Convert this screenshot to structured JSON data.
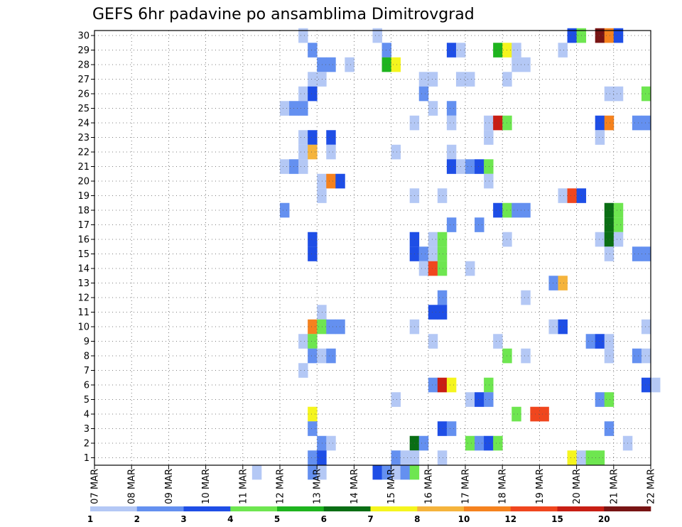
{
  "chart_data": {
    "type": "heatmap",
    "title": "GEFS 6hr padavine po ansamblima Dimitrovgrad",
    "xlabel": "",
    "ylabel": "",
    "grid": true,
    "legend_position": "bottom",
    "x_ticks": [
      "07 MAR",
      "08 MAR",
      "09 MAR",
      "10 MAR",
      "11 MAR",
      "12 MAR",
      "13 MAR",
      "14 MAR",
      "15 MAR",
      "16 MAR",
      "17 MAR",
      "18 MAR",
      "19 MAR",
      "20 MAR",
      "21 MAR",
      "22 MAR"
    ],
    "y_ticks": [
      1,
      2,
      3,
      4,
      5,
      6,
      7,
      8,
      9,
      10,
      11,
      12,
      13,
      14,
      15,
      16,
      17,
      18,
      19,
      20,
      21,
      22,
      23,
      24,
      25,
      26,
      27,
      28,
      29,
      30
    ],
    "time_step_hours": 6,
    "time_start": "07 MAR",
    "legend": {
      "thresholds": [
        1,
        2,
        3,
        4,
        5,
        6,
        7,
        8,
        10,
        12,
        15,
        20
      ],
      "colors": [
        "#b4c8f5",
        "#6490f0",
        "#1e4ee6",
        "#6ee650",
        "#1eb41e",
        "#0a6e14",
        "#f5f51e",
        "#f5b43c",
        "#f5821e",
        "#f0461e",
        "#c81e14",
        "#781414"
      ]
    },
    "cells": [
      {
        "x": "12 MAR 12Z",
        "member": 30,
        "value": 1
      },
      {
        "x": "14 MAR 12Z",
        "member": 30,
        "value": 1
      },
      {
        "x": "19 MAR 18Z",
        "member": 30,
        "value": 3
      },
      {
        "x": "20 MAR 00Z",
        "member": 30,
        "value": 4
      },
      {
        "x": "20 MAR 12Z",
        "member": 30,
        "value": 20
      },
      {
        "x": "20 MAR 18Z",
        "member": 30,
        "value": 10
      },
      {
        "x": "21 MAR 00Z",
        "member": 30,
        "value": 3
      },
      {
        "x": "12 MAR 18Z",
        "member": 29,
        "value": 2
      },
      {
        "x": "14 MAR 18Z",
        "member": 29,
        "value": 2
      },
      {
        "x": "16 MAR 12Z",
        "member": 29,
        "value": 3
      },
      {
        "x": "16 MAR 18Z",
        "member": 29,
        "value": 1
      },
      {
        "x": "17 MAR 18Z",
        "member": 29,
        "value": 5
      },
      {
        "x": "18 MAR 00Z",
        "member": 29,
        "value": 7
      },
      {
        "x": "18 MAR 06Z",
        "member": 29,
        "value": 1
      },
      {
        "x": "19 MAR 12Z",
        "member": 29,
        "value": 1
      },
      {
        "x": "13 MAR 00Z",
        "member": 28,
        "value": 2
      },
      {
        "x": "13 MAR 06Z",
        "member": 28,
        "value": 2
      },
      {
        "x": "13 MAR 18Z",
        "member": 28,
        "value": 1
      },
      {
        "x": "14 MAR 18Z",
        "member": 28,
        "value": 5
      },
      {
        "x": "15 MAR 00Z",
        "member": 28,
        "value": 7
      },
      {
        "x": "18 MAR 06Z",
        "member": 28,
        "value": 1
      },
      {
        "x": "18 MAR 12Z",
        "member": 28,
        "value": 1
      },
      {
        "x": "12 MAR 18Z",
        "member": 27,
        "value": 1
      },
      {
        "x": "13 MAR 00Z",
        "member": 27,
        "value": 1
      },
      {
        "x": "15 MAR 18Z",
        "member": 27,
        "value": 1
      },
      {
        "x": "16 MAR 00Z",
        "member": 27,
        "value": 1
      },
      {
        "x": "16 MAR 18Z",
        "member": 27,
        "value": 1
      },
      {
        "x": "17 MAR 00Z",
        "member": 27,
        "value": 1
      },
      {
        "x": "18 MAR 00Z",
        "member": 27,
        "value": 1
      },
      {
        "x": "12 MAR 12Z",
        "member": 26,
        "value": 1
      },
      {
        "x": "12 MAR 18Z",
        "member": 26,
        "value": 3
      },
      {
        "x": "15 MAR 18Z",
        "member": 26,
        "value": 2
      },
      {
        "x": "20 MAR 18Z",
        "member": 26,
        "value": 1
      },
      {
        "x": "21 MAR 00Z",
        "member": 26,
        "value": 1
      },
      {
        "x": "21 MAR 18Z",
        "member": 26,
        "value": 4
      },
      {
        "x": "12 MAR 00Z",
        "member": 25,
        "value": 1
      },
      {
        "x": "12 MAR 06Z",
        "member": 25,
        "value": 2
      },
      {
        "x": "12 MAR 12Z",
        "member": 25,
        "value": 2
      },
      {
        "x": "16 MAR 00Z",
        "member": 25,
        "value": 1
      },
      {
        "x": "16 MAR 12Z",
        "member": 25,
        "value": 2
      },
      {
        "x": "15 MAR 12Z",
        "member": 24,
        "value": 1
      },
      {
        "x": "16 MAR 12Z",
        "member": 24,
        "value": 1
      },
      {
        "x": "17 MAR 12Z",
        "member": 24,
        "value": 1
      },
      {
        "x": "17 MAR 18Z",
        "member": 24,
        "value": 15
      },
      {
        "x": "18 MAR 00Z",
        "member": 24,
        "value": 4
      },
      {
        "x": "20 MAR 12Z",
        "member": 24,
        "value": 3
      },
      {
        "x": "20 MAR 18Z",
        "member": 24,
        "value": 10
      },
      {
        "x": "21 MAR 12Z",
        "member": 24,
        "value": 2
      },
      {
        "x": "21 MAR 18Z",
        "member": 24,
        "value": 2
      },
      {
        "x": "12 MAR 12Z",
        "member": 23,
        "value": 1
      },
      {
        "x": "12 MAR 18Z",
        "member": 23,
        "value": 3
      },
      {
        "x": "13 MAR 06Z",
        "member": 23,
        "value": 3
      },
      {
        "x": "17 MAR 12Z",
        "member": 23,
        "value": 1
      },
      {
        "x": "20 MAR 12Z",
        "member": 23,
        "value": 1
      },
      {
        "x": "12 MAR 12Z",
        "member": 22,
        "value": 1
      },
      {
        "x": "12 MAR 18Z",
        "member": 22,
        "value": 8
      },
      {
        "x": "13 MAR 06Z",
        "member": 22,
        "value": 1
      },
      {
        "x": "15 MAR 00Z",
        "member": 22,
        "value": 1
      },
      {
        "x": "16 MAR 12Z",
        "member": 22,
        "value": 1
      },
      {
        "x": "12 MAR 00Z",
        "member": 21,
        "value": 1
      },
      {
        "x": "12 MAR 06Z",
        "member": 21,
        "value": 2
      },
      {
        "x": "12 MAR 12Z",
        "member": 21,
        "value": 1
      },
      {
        "x": "16 MAR 12Z",
        "member": 21,
        "value": 3
      },
      {
        "x": "16 MAR 18Z",
        "member": 21,
        "value": 1
      },
      {
        "x": "17 MAR 00Z",
        "member": 21,
        "value": 2
      },
      {
        "x": "17 MAR 06Z",
        "member": 21,
        "value": 3
      },
      {
        "x": "17 MAR 12Z",
        "member": 21,
        "value": 4
      },
      {
        "x": "13 MAR 00Z",
        "member": 20,
        "value": 1
      },
      {
        "x": "13 MAR 06Z",
        "member": 20,
        "value": 10
      },
      {
        "x": "13 MAR 12Z",
        "member": 20,
        "value": 3
      },
      {
        "x": "17 MAR 12Z",
        "member": 20,
        "value": 1
      },
      {
        "x": "13 MAR 00Z",
        "member": 19,
        "value": 1
      },
      {
        "x": "15 MAR 12Z",
        "member": 19,
        "value": 1
      },
      {
        "x": "16 MAR 06Z",
        "member": 19,
        "value": 1
      },
      {
        "x": "19 MAR 12Z",
        "member": 19,
        "value": 1
      },
      {
        "x": "19 MAR 18Z",
        "member": 19,
        "value": 12
      },
      {
        "x": "20 MAR 00Z",
        "member": 19,
        "value": 3
      },
      {
        "x": "12 MAR 00Z",
        "member": 18,
        "value": 2
      },
      {
        "x": "17 MAR 18Z",
        "member": 18,
        "value": 3
      },
      {
        "x": "18 MAR 00Z",
        "member": 18,
        "value": 4
      },
      {
        "x": "18 MAR 06Z",
        "member": 18,
        "value": 2
      },
      {
        "x": "18 MAR 12Z",
        "member": 18,
        "value": 2
      },
      {
        "x": "20 MAR 18Z",
        "member": 18,
        "value": 6
      },
      {
        "x": "21 MAR 00Z",
        "member": 18,
        "value": 4
      },
      {
        "x": "16 MAR 12Z",
        "member": 17,
        "value": 2
      },
      {
        "x": "17 MAR 06Z",
        "member": 17,
        "value": 2
      },
      {
        "x": "20 MAR 18Z",
        "member": 17,
        "value": 6
      },
      {
        "x": "21 MAR 00Z",
        "member": 17,
        "value": 4
      },
      {
        "x": "12 MAR 18Z",
        "member": 16,
        "value": 3
      },
      {
        "x": "15 MAR 12Z",
        "member": 16,
        "value": 3
      },
      {
        "x": "16 MAR 00Z",
        "member": 16,
        "value": 1
      },
      {
        "x": "16 MAR 06Z",
        "member": 16,
        "value": 4
      },
      {
        "x": "18 MAR 00Z",
        "member": 16,
        "value": 1
      },
      {
        "x": "20 MAR 12Z",
        "member": 16,
        "value": 1
      },
      {
        "x": "20 MAR 18Z",
        "member": 16,
        "value": 6
      },
      {
        "x": "21 MAR 00Z",
        "member": 16,
        "value": 1
      },
      {
        "x": "12 MAR 18Z",
        "member": 15,
        "value": 3
      },
      {
        "x": "15 MAR 12Z",
        "member": 15,
        "value": 3
      },
      {
        "x": "15 MAR 18Z",
        "member": 15,
        "value": 2
      },
      {
        "x": "16 MAR 00Z",
        "member": 15,
        "value": 1
      },
      {
        "x": "16 MAR 06Z",
        "member": 15,
        "value": 4
      },
      {
        "x": "20 MAR 18Z",
        "member": 15,
        "value": 1
      },
      {
        "x": "21 MAR 12Z",
        "member": 15,
        "value": 2
      },
      {
        "x": "21 MAR 18Z",
        "member": 15,
        "value": 2
      },
      {
        "x": "15 MAR 18Z",
        "member": 14,
        "value": 1
      },
      {
        "x": "16 MAR 00Z",
        "member": 14,
        "value": 12
      },
      {
        "x": "16 MAR 06Z",
        "member": 14,
        "value": 4
      },
      {
        "x": "17 MAR 00Z",
        "member": 14,
        "value": 1
      },
      {
        "x": "19 MAR 06Z",
        "member": 13,
        "value": 2
      },
      {
        "x": "19 MAR 12Z",
        "member": 13,
        "value": 8
      },
      {
        "x": "16 MAR 06Z",
        "member": 12,
        "value": 2
      },
      {
        "x": "18 MAR 12Z",
        "member": 12,
        "value": 1
      },
      {
        "x": "13 MAR 00Z",
        "member": 11,
        "value": 1
      },
      {
        "x": "16 MAR 00Z",
        "member": 11,
        "value": 3
      },
      {
        "x": "16 MAR 06Z",
        "member": 11,
        "value": 3
      },
      {
        "x": "12 MAR 18Z",
        "member": 10,
        "value": 10
      },
      {
        "x": "13 MAR 00Z",
        "member": 10,
        "value": 4
      },
      {
        "x": "13 MAR 06Z",
        "member": 10,
        "value": 2
      },
      {
        "x": "13 MAR 12Z",
        "member": 10,
        "value": 2
      },
      {
        "x": "15 MAR 12Z",
        "member": 10,
        "value": 1
      },
      {
        "x": "19 MAR 06Z",
        "member": 10,
        "value": 1
      },
      {
        "x": "19 MAR 12Z",
        "member": 10,
        "value": 3
      },
      {
        "x": "21 MAR 18Z",
        "member": 10,
        "value": 1
      },
      {
        "x": "12 MAR 12Z",
        "member": 9,
        "value": 1
      },
      {
        "x": "12 MAR 18Z",
        "member": 9,
        "value": 4
      },
      {
        "x": "16 MAR 00Z",
        "member": 9,
        "value": 1
      },
      {
        "x": "17 MAR 18Z",
        "member": 9,
        "value": 1
      },
      {
        "x": "20 MAR 06Z",
        "member": 9,
        "value": 2
      },
      {
        "x": "20 MAR 12Z",
        "member": 9,
        "value": 3
      },
      {
        "x": "20 MAR 18Z",
        "member": 9,
        "value": 1
      },
      {
        "x": "12 MAR 18Z",
        "member": 8,
        "value": 2
      },
      {
        "x": "13 MAR 00Z",
        "member": 8,
        "value": 1
      },
      {
        "x": "13 MAR 06Z",
        "member": 8,
        "value": 2
      },
      {
        "x": "18 MAR 00Z",
        "member": 8,
        "value": 4
      },
      {
        "x": "18 MAR 12Z",
        "member": 8,
        "value": 1
      },
      {
        "x": "20 MAR 18Z",
        "member": 8,
        "value": 1
      },
      {
        "x": "21 MAR 12Z",
        "member": 8,
        "value": 2
      },
      {
        "x": "21 MAR 18Z",
        "member": 8,
        "value": 1
      },
      {
        "x": "12 MAR 12Z",
        "member": 7,
        "value": 1
      },
      {
        "x": "16 MAR 00Z",
        "member": 6,
        "value": 2
      },
      {
        "x": "16 MAR 06Z",
        "member": 6,
        "value": 15
      },
      {
        "x": "16 MAR 12Z",
        "member": 6,
        "value": 7
      },
      {
        "x": "17 MAR 12Z",
        "member": 6,
        "value": 4
      },
      {
        "x": "21 MAR 18Z",
        "member": 6,
        "value": 3
      },
      {
        "x": "22 MAR 00Z",
        "member": 6,
        "value": 1
      },
      {
        "x": "15 MAR 00Z",
        "member": 5,
        "value": 1
      },
      {
        "x": "17 MAR 00Z",
        "member": 5,
        "value": 1
      },
      {
        "x": "17 MAR 06Z",
        "member": 5,
        "value": 3
      },
      {
        "x": "17 MAR 12Z",
        "member": 5,
        "value": 2
      },
      {
        "x": "20 MAR 12Z",
        "member": 5,
        "value": 2
      },
      {
        "x": "20 MAR 18Z",
        "member": 5,
        "value": 4
      },
      {
        "x": "12 MAR 18Z",
        "member": 4,
        "value": 7
      },
      {
        "x": "18 MAR 06Z",
        "member": 4,
        "value": 4
      },
      {
        "x": "18 MAR 18Z",
        "member": 4,
        "value": 12
      },
      {
        "x": "19 MAR 00Z",
        "member": 4,
        "value": 12
      },
      {
        "x": "12 MAR 18Z",
        "member": 3,
        "value": 2
      },
      {
        "x": "16 MAR 06Z",
        "member": 3,
        "value": 3
      },
      {
        "x": "16 MAR 12Z",
        "member": 3,
        "value": 2
      },
      {
        "x": "20 MAR 18Z",
        "member": 3,
        "value": 2
      },
      {
        "x": "13 MAR 00Z",
        "member": 2,
        "value": 2
      },
      {
        "x": "13 MAR 06Z",
        "member": 2,
        "value": 1
      },
      {
        "x": "15 MAR 12Z",
        "member": 2,
        "value": 6
      },
      {
        "x": "15 MAR 18Z",
        "member": 2,
        "value": 2
      },
      {
        "x": "17 MAR 00Z",
        "member": 2,
        "value": 4
      },
      {
        "x": "17 MAR 06Z",
        "member": 2,
        "value": 2
      },
      {
        "x": "17 MAR 12Z",
        "member": 2,
        "value": 3
      },
      {
        "x": "17 MAR 18Z",
        "member": 2,
        "value": 4
      },
      {
        "x": "21 MAR 06Z",
        "member": 2,
        "value": 1
      },
      {
        "x": "12 MAR 18Z",
        "member": 1,
        "value": 2
      },
      {
        "x": "13 MAR 00Z",
        "member": 1,
        "value": 3
      },
      {
        "x": "15 MAR 00Z",
        "member": 1,
        "value": 2
      },
      {
        "x": "15 MAR 06Z",
        "member": 1,
        "value": 1
      },
      {
        "x": "15 MAR 12Z",
        "member": 1,
        "value": 1
      },
      {
        "x": "16 MAR 06Z",
        "member": 1,
        "value": 1
      },
      {
        "x": "19 MAR 18Z",
        "member": 1,
        "value": 7
      },
      {
        "x": "20 MAR 00Z",
        "member": 1,
        "value": 1
      },
      {
        "x": "20 MAR 06Z",
        "member": 1,
        "value": 4
      },
      {
        "x": "20 MAR 12Z",
        "member": 1,
        "value": 4
      },
      {
        "x": "11 MAR 06Z",
        "member": 0,
        "value": 1
      },
      {
        "x": "12 MAR 18Z",
        "member": 0,
        "value": 2
      },
      {
        "x": "13 MAR 00Z",
        "member": 0,
        "value": 1
      },
      {
        "x": "14 MAR 12Z",
        "member": 0,
        "value": 3
      },
      {
        "x": "14 MAR 18Z",
        "member": 0,
        "value": 2
      },
      {
        "x": "15 MAR 00Z",
        "member": 0,
        "value": 1
      },
      {
        "x": "15 MAR 06Z",
        "member": 0,
        "value": 2
      },
      {
        "x": "15 MAR 12Z",
        "member": 0,
        "value": 4
      }
    ]
  }
}
